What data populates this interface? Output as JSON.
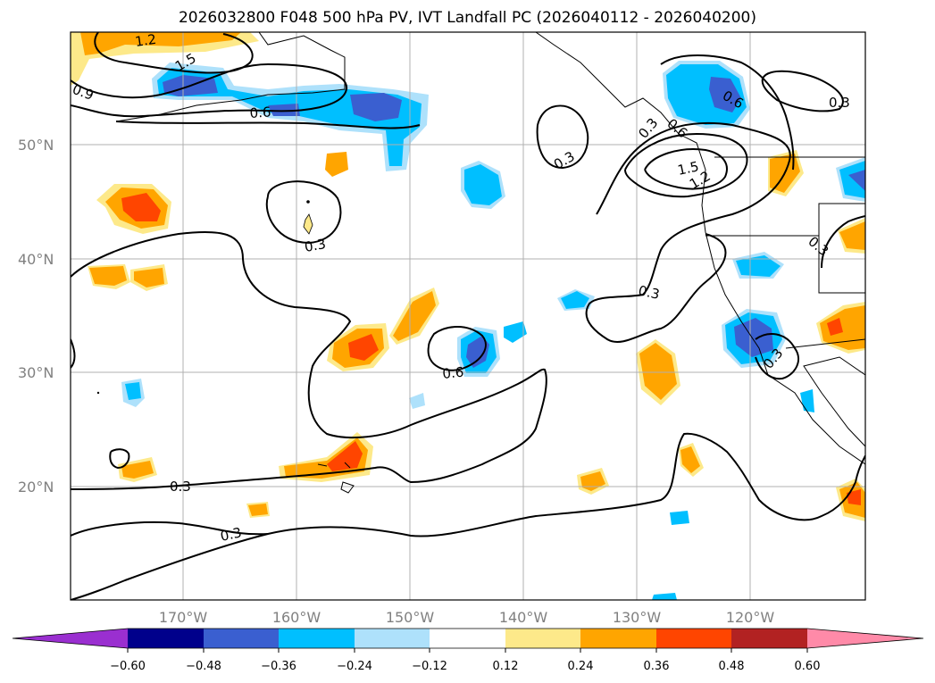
{
  "title": "2026032800 F048 500 hPa PV, IVT Landfall PC (2026040112 - 2026040200)",
  "lat_labels": [
    "50°N",
    "40°N",
    "30°N",
    "20°N"
  ],
  "lon_labels": [
    "170°W",
    "160°W",
    "150°W",
    "140°W",
    "130°W",
    "120°W"
  ],
  "contour_labels": [
    "1.2",
    "1.5",
    "0.9",
    "0.6",
    "0.3",
    "0.6",
    "0.3",
    "0.3",
    "0.6",
    "1.5",
    "1.2",
    "0.6",
    "0.3",
    "0.3",
    "0.3",
    "0.3",
    "0.3",
    "0.3"
  ],
  "colorbar": {
    "tick_labels": [
      "−0.60",
      "−0.48",
      "−0.36",
      "−0.24",
      "−0.12",
      "0.12",
      "0.24",
      "0.36",
      "0.48",
      "0.60"
    ],
    "colors": [
      "#9a2fd0",
      "#00008b",
      "#3a5fd0",
      "#00bfff",
      "#aee1fb",
      "#ffffff",
      "#fde98a",
      "#ffa500",
      "#ff4500",
      "#b22222",
      "#ff8aa8",
      "#ff8aa8"
    ]
  }
}
